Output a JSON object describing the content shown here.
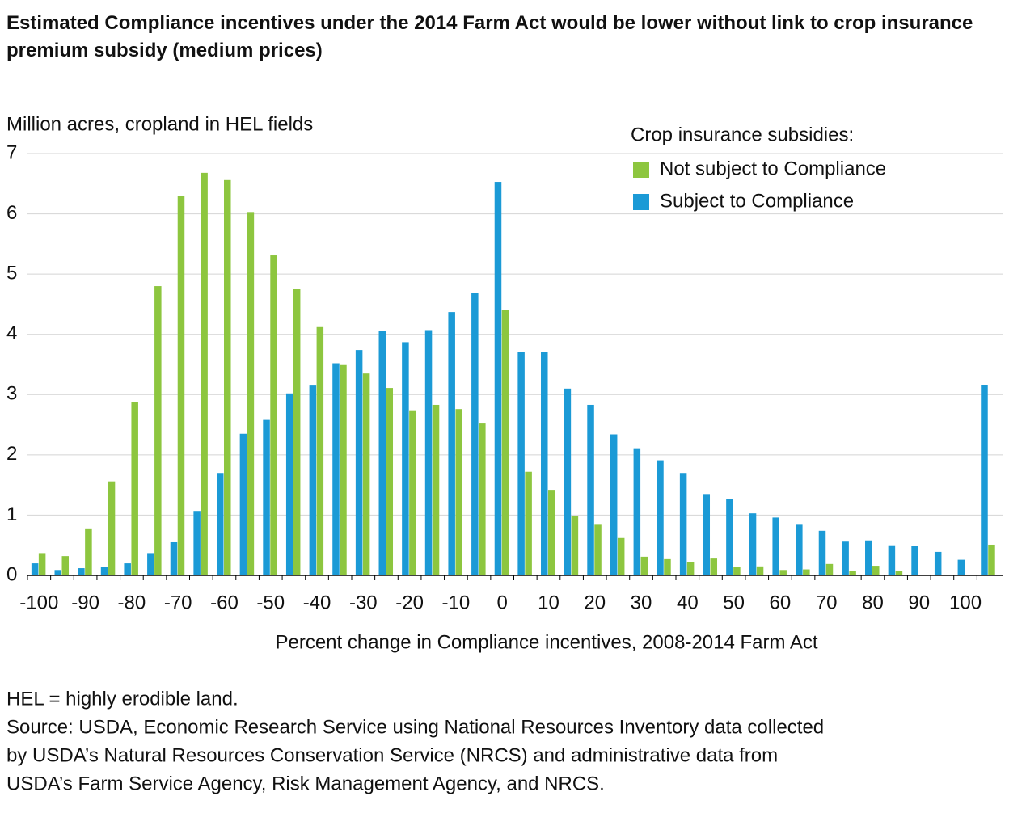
{
  "chart_data": {
    "type": "bar",
    "title": "Estimated Compliance incentives under the 2014 Farm Act would be lower without link to crop insurance premium subsidy (medium prices)",
    "y_axis_label": "Million acres, cropland in HEL fields",
    "x_axis_label": "Percent change in Compliance incentives, 2008-2014 Farm Act",
    "legend_title": "Crop insurance subsidies:",
    "legend_position": "upper right",
    "grid": true,
    "categories": [
      "-100",
      null,
      "-90",
      null,
      "-80",
      null,
      "-70",
      null,
      "-60",
      null,
      "-50",
      null,
      "-40",
      null,
      "-30",
      null,
      "-20",
      null,
      "-10",
      null,
      "0",
      null,
      "10",
      null,
      "20",
      null,
      "30",
      null,
      "40",
      null,
      "50",
      null,
      "60",
      null,
      "70",
      null,
      "80",
      null,
      "90",
      null,
      "100",
      null
    ],
    "series": [
      {
        "name": "Not subject to Compliance",
        "color": "#8dc63f",
        "values": [
          0.37,
          0.32,
          0.78,
          1.56,
          2.87,
          4.8,
          6.3,
          6.68,
          6.56,
          6.03,
          5.31,
          4.75,
          4.12,
          3.49,
          3.35,
          3.11,
          2.74,
          2.83,
          2.76,
          2.52,
          4.41,
          1.72,
          1.42,
          0.99,
          0.84,
          0.62,
          0.31,
          0.27,
          0.22,
          0.28,
          0.14,
          0.15,
          0.09,
          0.1,
          0.19,
          0.08,
          0.16,
          0.08,
          0,
          0,
          0.01,
          0.51
        ]
      },
      {
        "name": "Subject to Compliance",
        "color": "#1b9ad6",
        "values": [
          0.2,
          0.09,
          0.12,
          0.14,
          0.2,
          0.37,
          0.55,
          1.07,
          1.7,
          2.35,
          2.58,
          3.02,
          3.15,
          3.52,
          3.74,
          4.06,
          3.87,
          4.07,
          4.37,
          4.69,
          6.53,
          3.71,
          3.71,
          3.1,
          2.83,
          2.34,
          2.11,
          1.91,
          1.7,
          1.35,
          1.27,
          1.03,
          0.96,
          0.84,
          0.74,
          0.56,
          0.58,
          0.5,
          0.49,
          0.39,
          0.26,
          3.16
        ]
      }
    ],
    "ylim": [
      0,
      7
    ],
    "yticks": [
      0,
      1,
      2,
      3,
      4,
      5,
      6,
      7
    ],
    "notes": [
      "HEL = highly erodible land.",
      "Source: USDA, Economic Research Service using National Resources Inventory data collected",
      "by USDA’s Natural Resources Conservation Service (NRCS) and administrative data from",
      "USDA’s Farm Service Agency, Risk Management Agency, and NRCS."
    ]
  }
}
